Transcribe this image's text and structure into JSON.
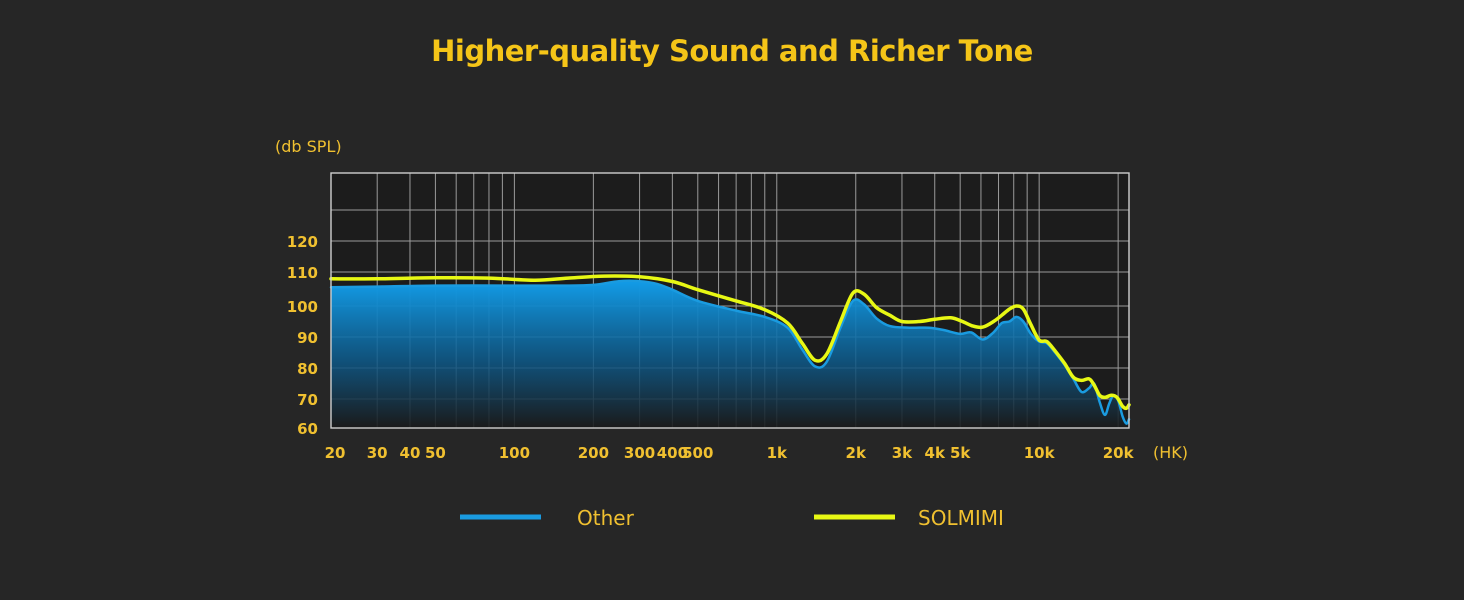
{
  "chart_data": {
    "type": "area",
    "title": "Higher-quality Sound and Richer Tone",
    "ylabel": "(db SPL)",
    "xlabel": "(HK)",
    "x_scale": "log",
    "xlim": [
      20,
      22000
    ],
    "y_ticks": [
      60,
      70,
      80,
      90,
      100,
      110,
      120
    ],
    "x_ticks": [
      {
        "value": 20,
        "label": "20"
      },
      {
        "value": 30,
        "label": "30"
      },
      {
        "value": 40,
        "label": "40"
      },
      {
        "value": 50,
        "label": "50"
      },
      {
        "value": 100,
        "label": "100"
      },
      {
        "value": 200,
        "label": "200"
      },
      {
        "value": 300,
        "label": "300"
      },
      {
        "value": 400,
        "label": "400"
      },
      {
        "value": 500,
        "label": "500"
      },
      {
        "value": 1000,
        "label": "1k"
      },
      {
        "value": 2000,
        "label": "2k"
      },
      {
        "value": 3000,
        "label": "3k"
      },
      {
        "value": 4000,
        "label": "4k"
      },
      {
        "value": 5000,
        "label": "5k"
      },
      {
        "value": 10000,
        "label": "10k"
      },
      {
        "value": 20000,
        "label": "20k"
      }
    ],
    "grid": true,
    "legend_position": "bottom",
    "series": [
      {
        "name": "Other",
        "color": "#1a9be0",
        "fill": true,
        "points": [
          [
            20,
            105.5
          ],
          [
            30,
            105.7
          ],
          [
            50,
            106
          ],
          [
            100,
            106
          ],
          [
            150,
            106
          ],
          [
            200,
            106.2
          ],
          [
            250,
            107.3
          ],
          [
            300,
            107.3
          ],
          [
            350,
            106.5
          ],
          [
            400,
            104.8
          ],
          [
            500,
            101.5
          ],
          [
            700,
            98.5
          ],
          [
            900,
            96.5
          ],
          [
            1100,
            93
          ],
          [
            1250,
            86
          ],
          [
            1400,
            80.5
          ],
          [
            1550,
            82
          ],
          [
            1750,
            93
          ],
          [
            1950,
            101.5
          ],
          [
            2150,
            100.5
          ],
          [
            2400,
            96
          ],
          [
            2700,
            93.5
          ],
          [
            3200,
            93
          ],
          [
            3800,
            93
          ],
          [
            4300,
            92.3
          ],
          [
            5000,
            91
          ],
          [
            5500,
            91.5
          ],
          [
            6100,
            89.2
          ],
          [
            6700,
            91.5
          ],
          [
            7200,
            94.5
          ],
          [
            7700,
            95
          ],
          [
            8200,
            96.5
          ],
          [
            8700,
            95
          ],
          [
            9300,
            91
          ],
          [
            10000,
            88.5
          ],
          [
            10700,
            88
          ],
          [
            11500,
            85
          ],
          [
            12500,
            81
          ],
          [
            13500,
            76.5
          ],
          [
            14500,
            72.3
          ],
          [
            15500,
            73.5
          ],
          [
            16200,
            75
          ],
          [
            17000,
            69
          ],
          [
            17800,
            64.5
          ],
          [
            18500,
            68.5
          ],
          [
            19200,
            71.2
          ],
          [
            20000,
            69.5
          ],
          [
            20800,
            64
          ],
          [
            21500,
            61.5
          ],
          [
            22000,
            63
          ]
        ]
      },
      {
        "name": "SOLMIMI",
        "color": "#e8f814",
        "fill": false,
        "points": [
          [
            20,
            108
          ],
          [
            30,
            108
          ],
          [
            50,
            108.3
          ],
          [
            80,
            108.2
          ],
          [
            120,
            107.6
          ],
          [
            160,
            108.2
          ],
          [
            220,
            108.8
          ],
          [
            300,
            108.6
          ],
          [
            400,
            107.2
          ],
          [
            500,
            104.8
          ],
          [
            700,
            101.5
          ],
          [
            900,
            98.8
          ],
          [
            1100,
            94.5
          ],
          [
            1250,
            88
          ],
          [
            1400,
            82.5
          ],
          [
            1550,
            84.5
          ],
          [
            1750,
            95
          ],
          [
            1950,
            103.8
          ],
          [
            2150,
            103.5
          ],
          [
            2400,
            99.5
          ],
          [
            2700,
            97
          ],
          [
            3000,
            95
          ],
          [
            3500,
            95
          ],
          [
            4000,
            95.7
          ],
          [
            4600,
            96.2
          ],
          [
            5100,
            95
          ],
          [
            5600,
            93.5
          ],
          [
            6100,
            93.2
          ],
          [
            6700,
            95
          ],
          [
            7200,
            97
          ],
          [
            7700,
            99
          ],
          [
            8200,
            100
          ],
          [
            8700,
            99
          ],
          [
            9300,
            94
          ],
          [
            10000,
            89
          ],
          [
            10700,
            88.5
          ],
          [
            11500,
            85.5
          ],
          [
            12500,
            81.5
          ],
          [
            13500,
            77
          ],
          [
            14500,
            76
          ],
          [
            15500,
            76.5
          ],
          [
            16200,
            74.5
          ],
          [
            17000,
            71.2
          ],
          [
            17800,
            70.5
          ],
          [
            18800,
            71.2
          ],
          [
            19800,
            70.5
          ],
          [
            20800,
            67.5
          ],
          [
            21500,
            66.8
          ],
          [
            22000,
            68
          ]
        ]
      }
    ]
  }
}
